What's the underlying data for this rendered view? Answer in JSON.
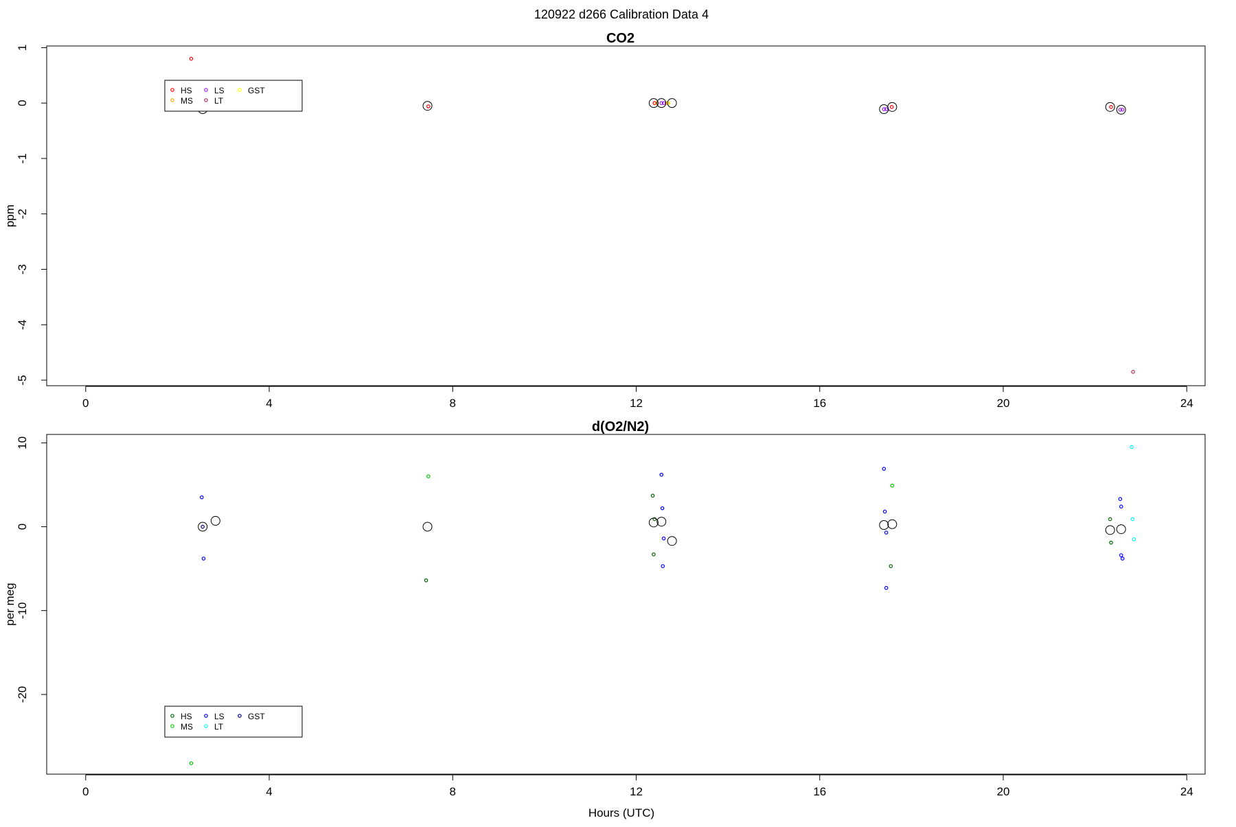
{
  "figure": {
    "title": "120922   d266   Calibration Data 4",
    "xlabel": "Hours (UTC)"
  },
  "chart_data": [
    {
      "type": "scatter",
      "title": "CO2",
      "xlabel": "",
      "ylabel": "ppm",
      "xlim": [
        -0.85,
        24.4
      ],
      "ylim": [
        -5.1,
        1.03
      ],
      "xticks": [
        "0",
        "4",
        "8",
        "12",
        "16",
        "20",
        "24"
      ],
      "xtick_values": [
        0,
        4,
        8,
        12,
        16,
        20,
        24
      ],
      "yticks": [
        "1",
        "0",
        "-1",
        "-2",
        "-3",
        "-4",
        "-5"
      ],
      "ytick_values": [
        1,
        0,
        -1,
        -2,
        -3,
        -4,
        -5
      ],
      "legend": {
        "position": "upper-left",
        "ncol": 3,
        "entries": [
          {
            "name": "HS",
            "color": "#ff0000"
          },
          {
            "name": "MS",
            "color": "#ffa500"
          },
          {
            "name": "LS",
            "color": "#a020f0"
          },
          {
            "name": "LT",
            "color": "#b03060"
          },
          {
            "name": "GST",
            "color": "#ffff00"
          }
        ]
      },
      "series": [
        {
          "name": "HS",
          "color": "#ff0000",
          "points": [
            [
              2.3,
              0.8
            ],
            [
              7.47,
              -0.06
            ],
            [
              12.4,
              0.0
            ],
            [
              17.57,
              -0.07
            ],
            [
              22.35,
              -0.07
            ]
          ]
        },
        {
          "name": "MS",
          "color": "#ffa500",
          "points": [
            [
              12.45,
              0.0
            ],
            [
              12.68,
              0.0
            ]
          ]
        },
        {
          "name": "LS",
          "color": "#a020f0",
          "points": [
            [
              12.55,
              0.0
            ],
            [
              12.6,
              0.0
            ],
            [
              17.4,
              -0.11
            ],
            [
              17.45,
              -0.11
            ],
            [
              22.55,
              -0.12
            ],
            [
              22.6,
              -0.12
            ]
          ]
        },
        {
          "name": "LT",
          "color": "#b03060",
          "points": [
            [
              22.83,
              -4.85
            ]
          ]
        },
        {
          "name": "GST",
          "color": "#ffff00",
          "points": [
            [
              12.7,
              0.0
            ]
          ]
        }
      ],
      "means": [
        [
          2.55,
          -0.11
        ],
        [
          7.45,
          -0.05
        ],
        [
          12.38,
          0.0
        ],
        [
          12.55,
          0.0
        ],
        [
          12.78,
          0.0
        ],
        [
          17.4,
          -0.11
        ],
        [
          17.58,
          -0.07
        ],
        [
          22.33,
          -0.07
        ],
        [
          22.57,
          -0.12
        ]
      ]
    },
    {
      "type": "scatter",
      "title": "d(O2/N2)",
      "xlabel": "Hours (UTC)",
      "ylabel": "per meg",
      "xlim": [
        -0.85,
        24.4
      ],
      "ylim": [
        -29.5,
        11
      ],
      "xticks": [
        "0",
        "4",
        "8",
        "12",
        "16",
        "20",
        "24"
      ],
      "xtick_values": [
        0,
        4,
        8,
        12,
        16,
        20,
        24
      ],
      "yticks": [
        "10",
        "0",
        "-10",
        "-20"
      ],
      "ytick_values": [
        10,
        0,
        -10,
        -20
      ],
      "legend": {
        "position": "lower-left",
        "ncol": 3,
        "entries": [
          {
            "name": "HS",
            "color": "#006400"
          },
          {
            "name": "MS",
            "color": "#00cc00"
          },
          {
            "name": "LS",
            "color": "#0000ff"
          },
          {
            "name": "LT",
            "color": "#00ffff"
          },
          {
            "name": "GST",
            "color": "#000080"
          }
        ]
      },
      "series": [
        {
          "name": "HS",
          "color": "#006400",
          "points": [
            [
              7.42,
              -6.4
            ],
            [
              12.36,
              3.7
            ],
            [
              12.38,
              -3.3
            ],
            [
              12.4,
              0.9
            ],
            [
              17.55,
              -4.7
            ],
            [
              22.33,
              0.9
            ],
            [
              22.35,
              -1.9
            ]
          ]
        },
        {
          "name": "MS",
          "color": "#00cc00",
          "points": [
            [
              2.3,
              -28.2
            ],
            [
              7.47,
              6.0
            ],
            [
              17.58,
              4.9
            ]
          ]
        },
        {
          "name": "LS",
          "color": "#0000ff",
          "points": [
            [
              2.53,
              3.5
            ],
            [
              2.57,
              -3.8
            ],
            [
              12.55,
              6.2
            ],
            [
              12.57,
              2.2
            ],
            [
              12.6,
              -1.4
            ],
            [
              12.58,
              -4.7
            ],
            [
              17.4,
              6.9
            ],
            [
              17.42,
              1.8
            ],
            [
              17.45,
              -0.7
            ],
            [
              17.45,
              -7.3
            ],
            [
              22.55,
              3.3
            ],
            [
              22.57,
              2.4
            ],
            [
              22.57,
              -3.4
            ],
            [
              22.6,
              -3.8
            ]
          ]
        },
        {
          "name": "LT",
          "color": "#00ffff",
          "points": [
            [
              22.8,
              9.5
            ],
            [
              22.82,
              0.9
            ],
            [
              22.85,
              -1.5
            ]
          ]
        },
        {
          "name": "GST",
          "color": "#000080",
          "points": [
            [
              2.55,
              0.0
            ]
          ]
        }
      ],
      "means": [
        [
          2.55,
          0.0
        ],
        [
          2.83,
          0.7
        ],
        [
          7.45,
          0.0
        ],
        [
          12.38,
          0.5
        ],
        [
          12.55,
          0.6
        ],
        [
          12.78,
          -1.7
        ],
        [
          17.4,
          0.2
        ],
        [
          17.58,
          0.3
        ],
        [
          22.33,
          -0.4
        ],
        [
          22.57,
          -0.3
        ]
      ]
    }
  ]
}
